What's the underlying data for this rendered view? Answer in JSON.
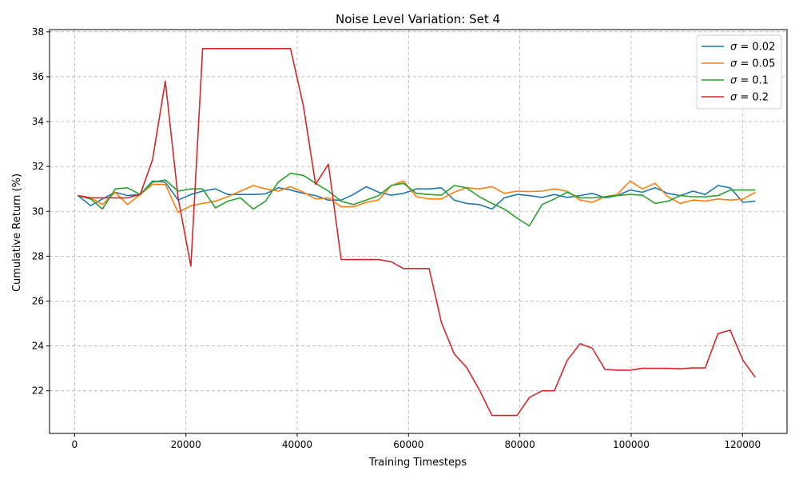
{
  "chart_data": {
    "type": "line",
    "title": "Noise Level Variation: Set 4",
    "xlabel": "Training Timesteps",
    "ylabel": "Cumulative Return (%)",
    "xlim": [
      -4500,
      128000
    ],
    "ylim": [
      20.1,
      38.1
    ],
    "xticks": [
      0,
      20000,
      40000,
      60000,
      80000,
      100000,
      120000
    ],
    "yticks": [
      22,
      24,
      26,
      28,
      30,
      32,
      34,
      36,
      38
    ],
    "grid": true,
    "legend_position": "top-right",
    "x": [
      600,
      2900,
      5000,
      7300,
      9500,
      11800,
      14000,
      16300,
      18600,
      20900,
      23000,
      25300,
      27500,
      29800,
      32100,
      34300,
      36600,
      38800,
      41100,
      43300,
      45600,
      47900,
      50100,
      52400,
      54600,
      56900,
      59100,
      61400,
      63700,
      65900,
      68200,
      70400,
      72700,
      75000,
      77200,
      79500,
      81700,
      84000,
      86200,
      88500,
      90800,
      93000,
      95300,
      97500,
      99800,
      102000,
      104300,
      106600,
      108800,
      111100,
      113300,
      115600,
      117800,
      120100,
      122300
    ],
    "series": [
      {
        "name": "σ = 0.02",
        "label_prefix": "σ = ",
        "label_value": "0.02",
        "color": "#1f77b4",
        "values": [
          30.7,
          30.25,
          30.55,
          30.85,
          30.7,
          30.75,
          31.35,
          31.3,
          30.5,
          30.75,
          30.9,
          31.0,
          30.75,
          30.75,
          30.75,
          30.78,
          31.05,
          30.95,
          30.8,
          30.7,
          30.5,
          30.5,
          30.75,
          31.1,
          30.85,
          30.72,
          30.8,
          31.0,
          31.0,
          31.05,
          30.5,
          30.35,
          30.3,
          30.1,
          30.6,
          30.75,
          30.7,
          30.62,
          30.75,
          30.62,
          30.7,
          30.8,
          30.6,
          30.7,
          30.95,
          30.85,
          31.05,
          30.8,
          30.7,
          30.9,
          30.75,
          31.15,
          31.05,
          30.4,
          30.45
        ]
      },
      {
        "name": "σ = 0.05",
        "label_prefix": "σ = ",
        "label_value": "0.05",
        "color": "#ff7f0e",
        "values": [
          30.7,
          30.6,
          30.3,
          30.85,
          30.3,
          30.75,
          31.2,
          31.2,
          29.95,
          30.25,
          30.35,
          30.45,
          30.65,
          30.9,
          31.15,
          31.0,
          30.9,
          31.1,
          30.85,
          30.55,
          30.6,
          30.2,
          30.2,
          30.4,
          30.5,
          31.15,
          31.35,
          30.65,
          30.55,
          30.55,
          30.85,
          31.05,
          31.0,
          31.1,
          30.8,
          30.9,
          30.88,
          30.9,
          31.0,
          30.9,
          30.5,
          30.4,
          30.65,
          30.75,
          31.35,
          31.0,
          31.25,
          30.65,
          30.35,
          30.5,
          30.45,
          30.55,
          30.5,
          30.55,
          30.85
        ]
      },
      {
        "name": "σ = 0.1",
        "label_prefix": "σ = ",
        "label_value": "0.1",
        "color": "#2ca02c",
        "values": [
          30.7,
          30.55,
          30.1,
          31.0,
          31.05,
          30.75,
          31.3,
          31.4,
          30.9,
          31.0,
          31.0,
          30.15,
          30.45,
          30.6,
          30.1,
          30.45,
          31.3,
          31.7,
          31.6,
          31.25,
          30.9,
          30.45,
          30.3,
          30.5,
          30.7,
          31.15,
          31.25,
          30.8,
          30.75,
          30.72,
          31.15,
          31.05,
          30.65,
          30.35,
          30.1,
          29.7,
          29.35,
          30.3,
          30.55,
          30.85,
          30.6,
          30.6,
          30.65,
          30.7,
          30.75,
          30.72,
          30.35,
          30.45,
          30.7,
          30.65,
          30.65,
          30.7,
          30.95,
          30.95,
          30.95
        ]
      },
      {
        "name": "σ = 0.2",
        "label_prefix": "σ = ",
        "label_value": "0.2",
        "color": "#d62728",
        "values": [
          30.7,
          30.6,
          30.6,
          30.6,
          30.6,
          30.75,
          32.3,
          35.8,
          30.6,
          27.55,
          37.25,
          37.25,
          37.25,
          37.25,
          37.25,
          37.25,
          37.25,
          37.25,
          34.7,
          31.2,
          32.1,
          27.85,
          27.85,
          27.85,
          27.85,
          27.75,
          27.45,
          27.45,
          27.45,
          25.05,
          23.65,
          23.05,
          22.05,
          20.9,
          20.9,
          20.9,
          21.7,
          22.0,
          22.0,
          23.35,
          24.1,
          23.9,
          22.95,
          22.92,
          22.92,
          23.0,
          23.0,
          23.0,
          22.98,
          23.02,
          23.02,
          24.55,
          24.7,
          23.35,
          22.6
        ]
      }
    ]
  }
}
